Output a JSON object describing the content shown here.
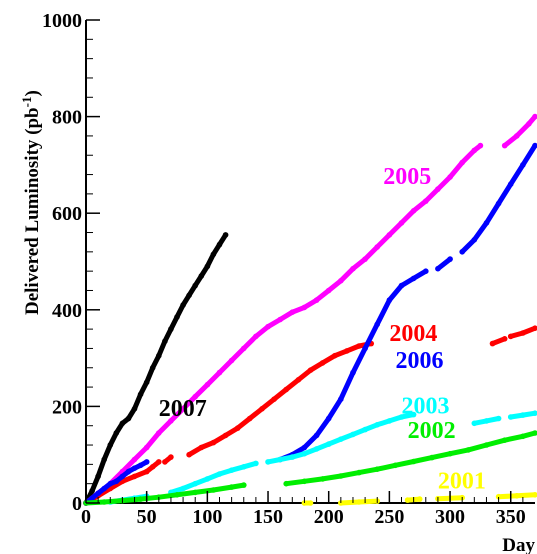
{
  "chart_data": {
    "type": "scatter",
    "xlabel": "Day",
    "ylabel": "Delivered Luminosity (pb",
    "ylabel_sup": "-1",
    "ylabel_close": ")",
    "xlim": [
      0,
      370
    ],
    "ylim": [
      0,
      1000
    ],
    "x_ticks": [
      "0",
      "50",
      "100",
      "150",
      "200",
      "250",
      "300",
      "350"
    ],
    "y_ticks": [
      "0",
      "200",
      "400",
      "600",
      "800",
      "1000"
    ],
    "grid": false,
    "series": [
      {
        "name": "2007",
        "color": "#000000",
        "label_at": [
          60,
          180
        ],
        "segments": [
          [
            [
              0,
              0
            ],
            [
              5,
              25
            ],
            [
              10,
              55
            ],
            [
              15,
              90
            ],
            [
              20,
              120
            ],
            [
              25,
              145
            ],
            [
              30,
              165
            ],
            [
              35,
              175
            ],
            [
              40,
              195
            ],
            [
              45,
              225
            ],
            [
              50,
              250
            ],
            [
              55,
              280
            ],
            [
              60,
              305
            ],
            [
              65,
              335
            ],
            [
              70,
              360
            ],
            [
              75,
              385
            ],
            [
              80,
              410
            ],
            [
              85,
              430
            ],
            [
              90,
              450
            ],
            [
              95,
              470
            ],
            [
              100,
              490
            ],
            [
              105,
              515
            ],
            [
              110,
              535
            ],
            [
              115,
              555
            ]
          ]
        ]
      },
      {
        "name": "2005",
        "color": "#ff00ff",
        "label_at": [
          245,
          660
        ],
        "segments": [
          [
            [
              0,
              0
            ],
            [
              10,
              20
            ],
            [
              20,
              40
            ],
            [
              30,
              65
            ],
            [
              40,
              90
            ],
            [
              50,
              115
            ],
            [
              60,
              145
            ],
            [
              70,
              170
            ],
            [
              80,
              195
            ],
            [
              90,
              220
            ],
            [
              100,
              245
            ],
            [
              110,
              270
            ],
            [
              120,
              295
            ],
            [
              130,
              320
            ],
            [
              140,
              345
            ],
            [
              150,
              365
            ],
            [
              160,
              380
            ],
            [
              170,
              395
            ],
            [
              180,
              405
            ],
            [
              190,
              420
            ],
            [
              200,
              440
            ],
            [
              210,
              460
            ],
            [
              220,
              485
            ],
            [
              230,
              505
            ],
            [
              240,
              530
            ],
            [
              250,
              555
            ],
            [
              260,
              580
            ],
            [
              270,
              605
            ],
            [
              280,
              625
            ],
            [
              290,
              650
            ],
            [
              300,
              675
            ],
            [
              310,
              705
            ],
            [
              320,
              730
            ],
            [
              325,
              740
            ]
          ],
          [
            [
              345,
              740
            ],
            [
              355,
              760
            ],
            [
              365,
              785
            ],
            [
              370,
              800
            ]
          ]
        ]
      },
      {
        "name": "2004",
        "color": "#ff0000",
        "label_at": [
          250,
          335
        ],
        "segments": [
          [
            [
              0,
              0
            ],
            [
              10,
              15
            ],
            [
              20,
              30
            ],
            [
              30,
              45
            ],
            [
              40,
              55
            ],
            [
              50,
              65
            ],
            [
              55,
              75
            ],
            [
              60,
              85
            ]
          ],
          [
            [
              65,
              85
            ],
            [
              70,
              95
            ]
          ],
          [
            [
              85,
              100
            ],
            [
              95,
              115
            ],
            [
              105,
              125
            ],
            [
              115,
              140
            ],
            [
              125,
              155
            ],
            [
              135,
              175
            ],
            [
              145,
              195
            ],
            [
              155,
              215
            ],
            [
              165,
              235
            ],
            [
              175,
              255
            ],
            [
              185,
              275
            ],
            [
              195,
              290
            ],
            [
              205,
              305
            ],
            [
              215,
              315
            ],
            [
              225,
              325
            ],
            [
              235,
              330
            ]
          ],
          [
            [
              335,
              330
            ],
            [
              345,
              340
            ]
          ],
          [
            [
              350,
              345
            ],
            [
              360,
              352
            ],
            [
              370,
              362
            ]
          ]
        ]
      },
      {
        "name": "2006",
        "color": "#0000ff",
        "label_at": [
          255,
          280
        ],
        "segments": [
          [
            [
              0,
              0
            ],
            [
              5,
              10
            ],
            [
              10,
              20
            ],
            [
              15,
              30
            ],
            [
              20,
              40
            ],
            [
              25,
              45
            ],
            [
              30,
              55
            ],
            [
              35,
              65
            ],
            [
              40,
              72
            ],
            [
              45,
              78
            ],
            [
              50,
              85
            ]
          ],
          [
            [
              160,
              90
            ],
            [
              170,
              100
            ],
            [
              180,
              115
            ],
            [
              190,
              140
            ],
            [
              200,
              175
            ],
            [
              210,
              215
            ],
            [
              220,
              270
            ],
            [
              230,
              320
            ],
            [
              240,
              370
            ],
            [
              250,
              420
            ],
            [
              260,
              450
            ],
            [
              270,
              465
            ],
            [
              280,
              480
            ]
          ],
          [
            [
              290,
              485
            ],
            [
              300,
              505
            ]
          ],
          [
            [
              310,
              520
            ],
            [
              320,
              545
            ],
            [
              330,
              580
            ],
            [
              340,
              620
            ],
            [
              350,
              660
            ],
            [
              360,
              700
            ],
            [
              370,
              740
            ]
          ]
        ]
      },
      {
        "name": "2003",
        "color": "#00ffff",
        "label_at": [
          260,
          185
        ],
        "segments": [
          [
            [
              20,
              2
            ],
            [
              30,
              6
            ],
            [
              40,
              10
            ],
            [
              50,
              14
            ]
          ],
          [
            [
              70,
              22
            ],
            [
              80,
              30
            ],
            [
              90,
              40
            ],
            [
              100,
              50
            ],
            [
              110,
              60
            ],
            [
              120,
              68
            ],
            [
              130,
              75
            ],
            [
              140,
              82
            ]
          ],
          [
            [
              150,
              85
            ],
            [
              160,
              90
            ],
            [
              170,
              95
            ],
            [
              180,
              102
            ],
            [
              190,
              112
            ],
            [
              200,
              122
            ],
            [
              210,
              132
            ],
            [
              220,
              142
            ],
            [
              230,
              152
            ],
            [
              240,
              162
            ],
            [
              250,
              170
            ],
            [
              260,
              178
            ],
            [
              270,
              183
            ]
          ],
          [
            [
              320,
              165
            ],
            [
              330,
              170
            ],
            [
              340,
              175
            ]
          ],
          [
            [
              350,
              178
            ],
            [
              360,
              182
            ],
            [
              370,
              186
            ]
          ]
        ]
      },
      {
        "name": "2002",
        "color": "#00ee00",
        "label_at": [
          265,
          135
        ],
        "segments": [
          [
            [
              0,
              0
            ],
            [
              15,
              2
            ],
            [
              30,
              5
            ],
            [
              45,
              8
            ],
            [
              60,
              12
            ],
            [
              75,
              17
            ],
            [
              90,
              22
            ],
            [
              105,
              27
            ],
            [
              120,
              33
            ],
            [
              130,
              37
            ]
          ],
          [
            [
              165,
              40
            ],
            [
              180,
              45
            ],
            [
              195,
              50
            ],
            [
              210,
              56
            ],
            [
              225,
              63
            ],
            [
              240,
              70
            ],
            [
              255,
              78
            ],
            [
              270,
              86
            ],
            [
              285,
              94
            ],
            [
              300,
              102
            ],
            [
              315,
              110
            ],
            [
              330,
              120
            ],
            [
              345,
              130
            ],
            [
              360,
              138
            ],
            [
              370,
              145
            ]
          ]
        ]
      },
      {
        "name": "2001",
        "color": "#ffff00",
        "label_at": [
          290,
          30
        ],
        "segments": [
          [
            [
              180,
              0
            ],
            [
              185,
              0
            ]
          ],
          [
            [
              210,
              0
            ],
            [
              225,
              2
            ],
            [
              240,
              4
            ]
          ],
          [
            [
              265,
              6
            ],
            [
              275,
              8
            ]
          ],
          [
            [
              290,
              9
            ],
            [
              300,
              10
            ],
            [
              310,
              11
            ]
          ],
          [
            [
              340,
              13
            ],
            [
              355,
              15
            ],
            [
              370,
              17
            ]
          ]
        ]
      }
    ]
  }
}
